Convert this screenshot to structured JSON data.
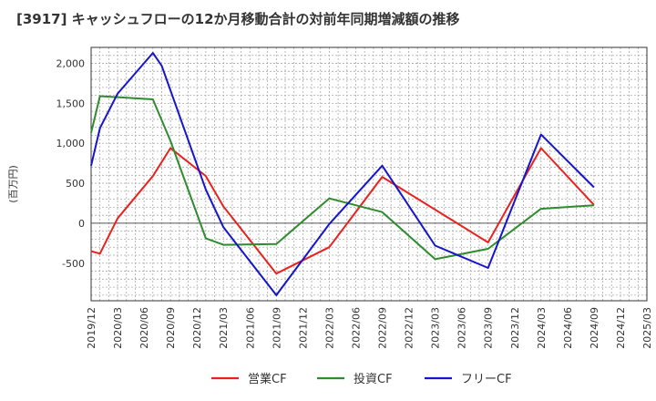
{
  "chart_data": {
    "type": "line",
    "title": "[3917]  キャッシュフローの12か月移動合計の対前年同期増減額の推移",
    "ylabel": "(百万円)",
    "xlabel": "",
    "ylim": [
      -970,
      2200
    ],
    "yticks": [
      -500,
      0,
      500,
      1000,
      1500,
      2000
    ],
    "ytick_labels": [
      "-500",
      "0",
      "500",
      "1,000",
      "1,500",
      "2,000"
    ],
    "xlim": [
      "2019-12",
      "2025-03"
    ],
    "xtick_labels": [
      "2019/12",
      "2020/03",
      "2020/06",
      "2020/09",
      "2020/12",
      "2021/03",
      "2021/06",
      "2021/09",
      "2021/12",
      "2022/03",
      "2022/06",
      "2022/09",
      "2022/12",
      "2023/03",
      "2023/06",
      "2023/09",
      "2023/12",
      "2024/03",
      "2024/06",
      "2024/09",
      "2024/12",
      "2025/03"
    ],
    "grid": true,
    "legend_position": "bottom",
    "series": [
      {
        "name": "営業CF",
        "color": "#e8231f",
        "points": [
          [
            "2019-12",
            -350
          ],
          [
            "2020-01",
            -380
          ],
          [
            "2020-03",
            60
          ],
          [
            "2020-07",
            590
          ],
          [
            "2020-09",
            940
          ],
          [
            "2021-01",
            590
          ],
          [
            "2021-03",
            210
          ],
          [
            "2021-09",
            -630
          ],
          [
            "2022-03",
            -300
          ],
          [
            "2022-09",
            580
          ],
          [
            "2023-09",
            -240
          ],
          [
            "2024-03",
            940
          ],
          [
            "2024-09",
            230
          ]
        ]
      },
      {
        "name": "投資CF",
        "color": "#2e8b2e",
        "points": [
          [
            "2019-12",
            1130
          ],
          [
            "2020-01",
            1590
          ],
          [
            "2020-07",
            1550
          ],
          [
            "2020-09",
            1030
          ],
          [
            "2021-01",
            -190
          ],
          [
            "2021-03",
            -270
          ],
          [
            "2021-09",
            -260
          ],
          [
            "2022-03",
            310
          ],
          [
            "2022-09",
            140
          ],
          [
            "2023-03",
            -450
          ],
          [
            "2023-09",
            -320
          ],
          [
            "2024-03",
            180
          ],
          [
            "2024-09",
            225
          ]
        ]
      },
      {
        "name": "フリーCF",
        "color": "#1515cc",
        "points": [
          [
            "2019-12",
            720
          ],
          [
            "2020-01",
            1190
          ],
          [
            "2020-03",
            1620
          ],
          [
            "2020-07",
            2130
          ],
          [
            "2020-08",
            1970
          ],
          [
            "2021-01",
            420
          ],
          [
            "2021-03",
            -50
          ],
          [
            "2021-09",
            -900
          ],
          [
            "2022-03",
            -10
          ],
          [
            "2022-09",
            720
          ],
          [
            "2023-03",
            -280
          ],
          [
            "2023-09",
            -560
          ],
          [
            "2024-03",
            1110
          ],
          [
            "2024-09",
            450
          ]
        ]
      }
    ]
  }
}
